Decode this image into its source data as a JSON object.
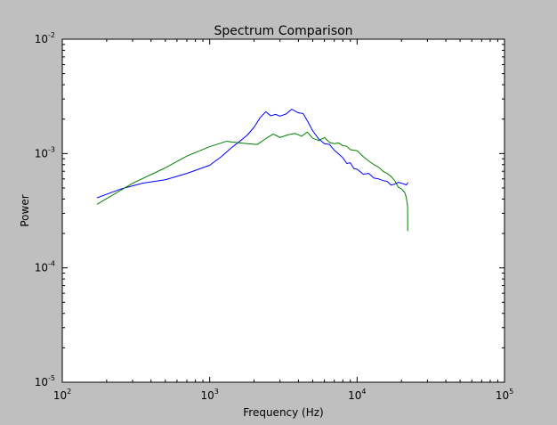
{
  "chart_data": {
    "type": "line",
    "title": "Spectrum Comparison",
    "xlabel": "Frequency (Hz)",
    "ylabel": "Power",
    "xscale": "log",
    "yscale": "log",
    "xlim": [
      100,
      100000
    ],
    "ylim": [
      1e-05,
      0.01
    ],
    "grid": false,
    "legend": "none",
    "x_tick_labels": [
      {
        "value": 100,
        "base": "10",
        "exp": "2"
      },
      {
        "value": 1000,
        "base": "10",
        "exp": "3"
      },
      {
        "value": 10000,
        "base": "10",
        "exp": "4"
      },
      {
        "value": 100000,
        "base": "10",
        "exp": "5"
      }
    ],
    "y_tick_labels": [
      {
        "value": 1e-05,
        "base": "10",
        "exp": "-5"
      },
      {
        "value": 0.0001,
        "base": "10",
        "exp": "-4"
      },
      {
        "value": 0.001,
        "base": "10",
        "exp": "-3"
      },
      {
        "value": 0.01,
        "base": "10",
        "exp": "-2"
      }
    ],
    "series": [
      {
        "color": "#0000ff",
        "x": [
          172,
          250,
          350,
          500,
          700,
          1000,
          1200,
          1400,
          1600,
          1800,
          2000,
          2200,
          2400,
          2600,
          2800,
          3000,
          3300,
          3600,
          4000,
          4300,
          4700,
          5000,
          5500,
          6000,
          6500,
          7000,
          7500,
          8000,
          8500,
          9000,
          9500,
          10000,
          11000,
          12000,
          13000,
          14000,
          15000,
          16000,
          17000,
          18000,
          19000,
          20000,
          21000,
          21500,
          22000,
          22050
        ],
        "y": [
          0.00041,
          0.00049,
          0.00055,
          0.00059,
          0.00067,
          0.00079,
          0.00094,
          0.00112,
          0.00128,
          0.00145,
          0.0017,
          0.00206,
          0.00232,
          0.00214,
          0.0022,
          0.00212,
          0.00222,
          0.00244,
          0.00227,
          0.00224,
          0.00184,
          0.00158,
          0.00134,
          0.00122,
          0.0012,
          0.00107,
          0.00099,
          0.00092,
          0.00082,
          0.00083,
          0.00074,
          0.00073,
          0.00066,
          0.00067,
          0.00061,
          0.0006,
          0.00058,
          0.00057,
          0.00053,
          0.00054,
          0.00056,
          0.00055,
          0.00054,
          0.00053,
          0.00055,
          0.00056
        ]
      },
      {
        "color": "#007f00",
        "x": [
          172,
          300,
          500,
          700,
          1000,
          1300,
          1500,
          1800,
          2100,
          2400,
          2700,
          3000,
          3400,
          3800,
          4200,
          4600,
          5000,
          5500,
          6000,
          6500,
          7000,
          7500,
          8000,
          8500,
          9000,
          10000,
          11000,
          12000,
          13000,
          14000,
          15000,
          16000,
          17000,
          18000,
          19000,
          20000,
          21000,
          21500,
          22000,
          22050
        ],
        "y": [
          0.00036,
          0.00055,
          0.00075,
          0.00095,
          0.00115,
          0.00128,
          0.00125,
          0.00122,
          0.0012,
          0.00135,
          0.00148,
          0.00138,
          0.00146,
          0.0015,
          0.00142,
          0.00154,
          0.00136,
          0.0013,
          0.00138,
          0.00125,
          0.00122,
          0.00124,
          0.00117,
          0.00116,
          0.00108,
          0.00106,
          0.00094,
          0.00086,
          0.0008,
          0.00076,
          0.0007,
          0.00067,
          0.00063,
          0.00058,
          0.00051,
          0.00049,
          0.00046,
          0.00042,
          0.00035,
          0.00021
        ]
      }
    ]
  }
}
